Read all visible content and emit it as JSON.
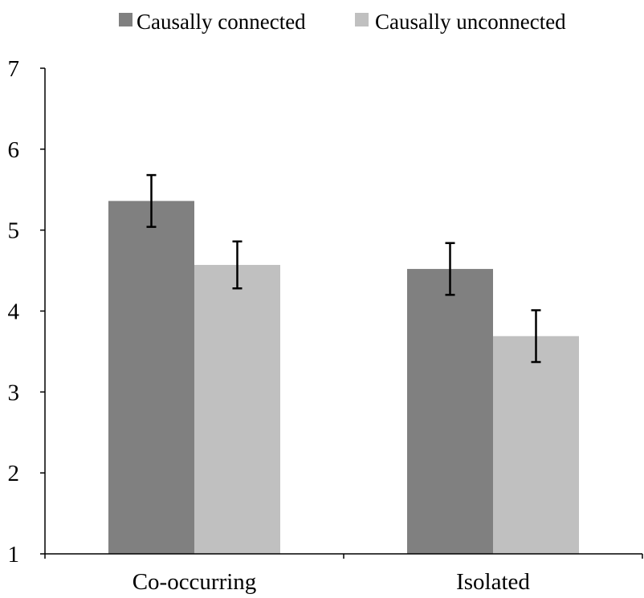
{
  "chart_data": {
    "type": "bar",
    "title": "",
    "xlabel": "",
    "ylabel": "",
    "categories": [
      "Co-occurring",
      "Isolated"
    ],
    "series": [
      {
        "name": "Causally connected",
        "color": "#808080",
        "values": [
          5.36,
          4.52
        ],
        "errors": [
          0.32,
          0.32
        ]
      },
      {
        "name": "Causally unconnected",
        "color": "#c0c0c0",
        "values": [
          4.57,
          3.69
        ],
        "errors": [
          0.29,
          0.32
        ]
      }
    ],
    "ylim": [
      1,
      7
    ],
    "yticks": [
      1,
      2,
      3,
      4,
      5,
      6,
      7
    ],
    "grid": false,
    "legend_position": "top-center"
  }
}
